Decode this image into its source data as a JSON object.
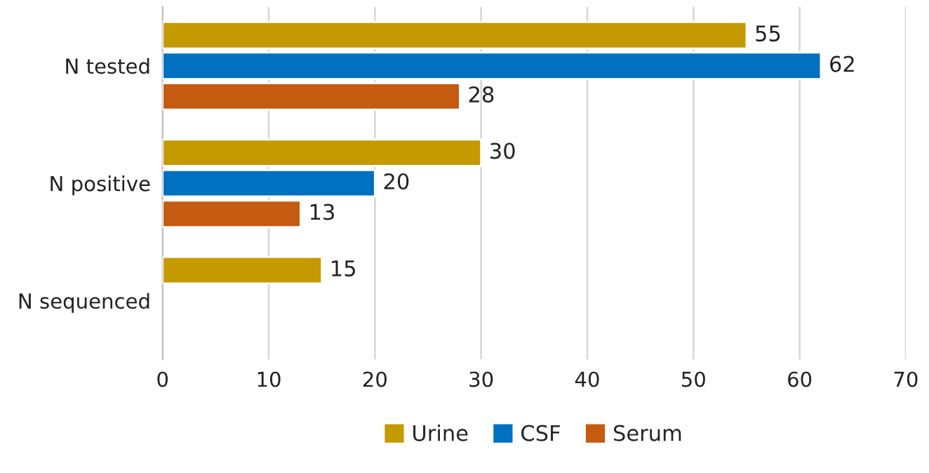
{
  "chart_data": {
    "type": "bar",
    "orientation": "horizontal",
    "categories": [
      "N tested",
      "N positive",
      "N sequenced"
    ],
    "series": [
      {
        "name": "Urine",
        "color": "#c49a00",
        "values": [
          55,
          30,
          15
        ]
      },
      {
        "name": "CSF",
        "color": "#0070c0",
        "values": [
          62,
          20,
          null
        ]
      },
      {
        "name": "Serum",
        "color": "#c55a11",
        "values": [
          28,
          13,
          null
        ]
      }
    ],
    "xlim": [
      0,
      70
    ],
    "xticks": [
      0,
      10,
      20,
      30,
      40,
      50,
      60,
      70
    ],
    "grid": "x",
    "legend": "bottom",
    "data_labels": true
  }
}
